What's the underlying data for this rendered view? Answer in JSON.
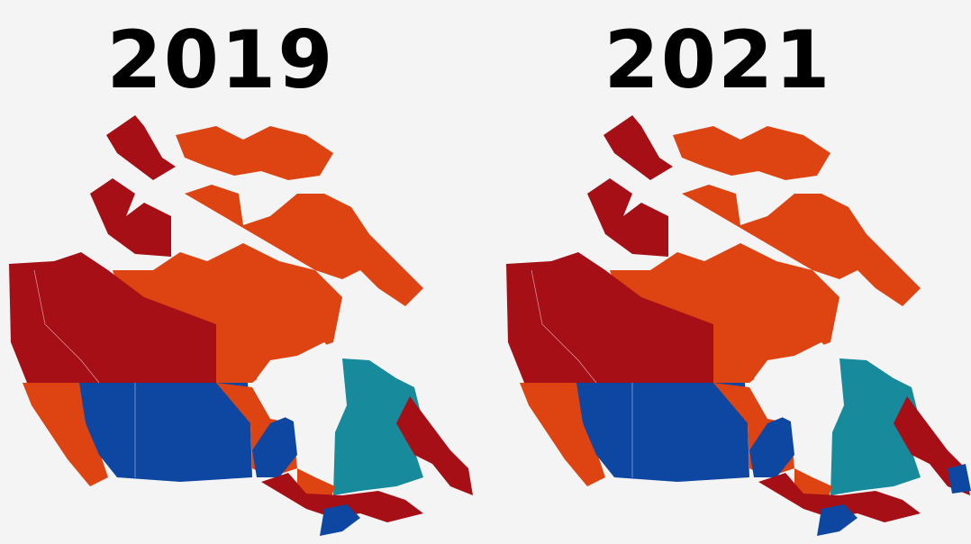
{
  "maps": [
    {
      "title": "2019"
    },
    {
      "title": "2021"
    }
  ]
}
